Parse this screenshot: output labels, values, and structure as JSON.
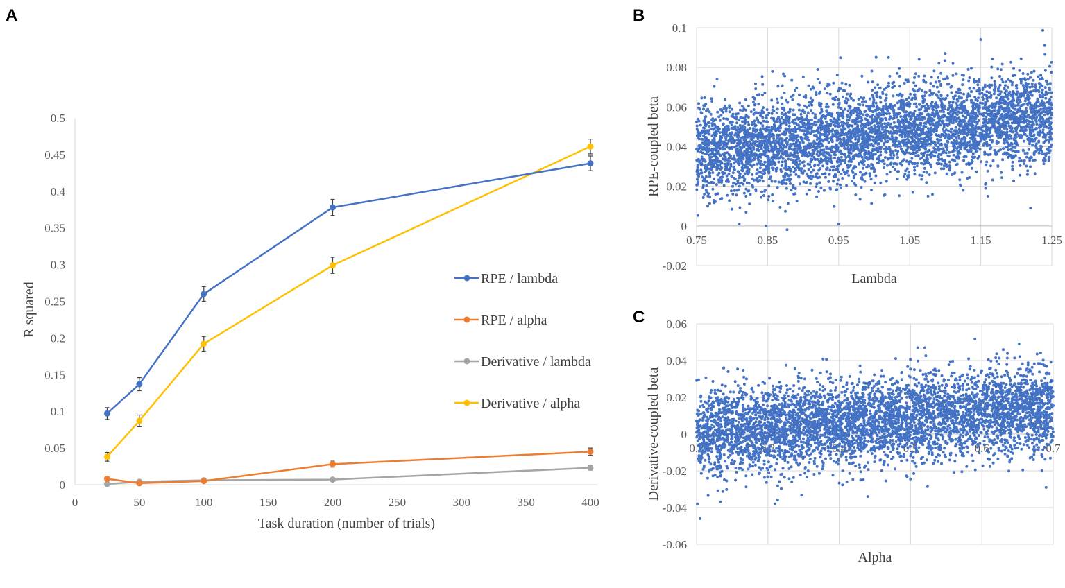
{
  "chart_data": [
    {
      "panel": "A",
      "type": "line",
      "xlabel": "Task duration (number of trials)",
      "ylabel": "R squared",
      "xlim": [
        0,
        400
      ],
      "ylim": [
        0,
        0.5
      ],
      "xticks": [
        "0",
        "50",
        "100",
        "150",
        "200",
        "250",
        "300",
        "350",
        "400"
      ],
      "yticks": [
        "0",
        "0.05",
        "0.1",
        "0.15",
        "0.2",
        "0.25",
        "0.3",
        "0.35",
        "0.4",
        "0.45",
        "0.5"
      ],
      "grid": false,
      "legend_position": "right",
      "x": [
        25,
        50,
        100,
        200,
        400
      ],
      "series": [
        {
          "name": "RPE / lambda",
          "color": "#4472C4",
          "values": [
            0.097,
            0.137,
            0.26,
            0.378,
            0.438
          ],
          "error": [
            0.008,
            0.009,
            0.01,
            0.011,
            0.01
          ]
        },
        {
          "name": "RPE / alpha",
          "color": "#ED7D31",
          "values": [
            0.008,
            0.002,
            0.005,
            0.028,
            0.045
          ],
          "error": [
            0.002,
            0.002,
            0.002,
            0.004,
            0.005
          ]
        },
        {
          "name": "Derivative / lambda",
          "color": "#A5A5A5",
          "values": [
            0.001,
            0.004,
            0.006,
            0.007,
            0.023
          ],
          "error": [
            0.001,
            0.001,
            0.001,
            0.002,
            0.003
          ]
        },
        {
          "name": "Derivative / alpha",
          "color": "#FFC000",
          "values": [
            0.038,
            0.087,
            0.192,
            0.299,
            0.461
          ],
          "error": [
            0.006,
            0.008,
            0.01,
            0.011,
            0.01
          ]
        }
      ]
    },
    {
      "panel": "B",
      "type": "scatter",
      "xlabel": "Lambda",
      "ylabel": "RPE-coupled beta",
      "xlim": [
        0.75,
        1.25
      ],
      "ylim": [
        -0.02,
        0.1
      ],
      "xticks": [
        "0.75",
        "0.85",
        "0.95",
        "1.05",
        "1.15",
        "1.25"
      ],
      "yticks": [
        "-0.02",
        "0",
        "0.02",
        "0.04",
        "0.06",
        "0.08",
        "0.1"
      ],
      "grid": true,
      "color": "#4472C4",
      "n_points": 5000,
      "trend": {
        "y_at_xmin": 0.037,
        "y_at_xmax": 0.056,
        "sd": 0.0115
      },
      "outliers": [
        [
          1.15,
          0.094
        ],
        [
          1.24,
          0.091
        ],
        [
          1.1,
          0.087
        ],
        [
          1.02,
          0.085
        ],
        [
          0.848,
          0.0
        ],
        [
          0.95,
          0.001
        ],
        [
          0.81,
          0.001
        ],
        [
          1.22,
          0.009
        ],
        [
          1.16,
          0.015
        ]
      ]
    },
    {
      "panel": "C",
      "type": "scatter",
      "xlabel": "Alpha",
      "ylabel": "Derivative-coupled beta",
      "xlim": [
        0.2,
        0.7
      ],
      "ylim": [
        -0.06,
        0.06
      ],
      "xticks": [
        "0.2",
        "0.3",
        "0.4",
        "0.5",
        "0.6",
        "0.7"
      ],
      "yticks": [
        "-0.06",
        "-0.04",
        "-0.02",
        "0",
        "0.02",
        "0.04",
        "0.06"
      ],
      "grid": true,
      "color": "#4472C4",
      "n_points": 5000,
      "trend": {
        "y_at_xmin": 0.0,
        "y_at_xmax": 0.014,
        "sd": 0.0115
      },
      "outliers": [
        [
          0.205,
          -0.046
        ],
        [
          0.201,
          -0.038
        ],
        [
          0.31,
          -0.038
        ],
        [
          0.44,
          -0.034
        ],
        [
          0.51,
          0.047
        ],
        [
          0.52,
          0.047
        ],
        [
          0.63,
          0.046
        ],
        [
          0.69,
          -0.029
        ]
      ]
    }
  ]
}
